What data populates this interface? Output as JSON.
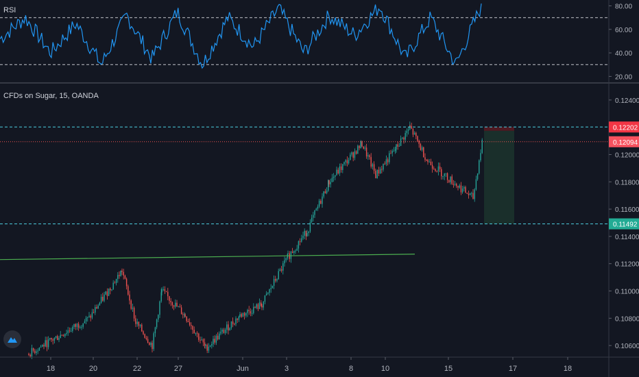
{
  "rsi_pane": {
    "label": "RSI",
    "ticks": [
      "80.00",
      "60.00",
      "40.00",
      "20.00"
    ]
  },
  "price_pane": {
    "label": "CFDs on Sugar, 15, OANDA",
    "ticks": [
      "0.12400",
      "0.12200",
      "0.12000",
      "0.11800",
      "0.11600",
      "0.11400",
      "0.11200",
      "0.11000",
      "0.10800",
      "0.10600"
    ],
    "price_labels": [
      {
        "text": "0.12202",
        "color": "#f23645"
      },
      {
        "text": "0.12094",
        "color": "#f7525f"
      },
      {
        "text": "0.11492",
        "color": "#22ab94"
      }
    ]
  },
  "time_axis": {
    "labels": [
      "18",
      "20",
      "22",
      "27",
      "Jun",
      "3",
      "8",
      "10",
      "15",
      "17",
      "18"
    ]
  },
  "colors": {
    "background": "#131722",
    "up": "#26a69a",
    "down": "#ef5350",
    "rsi_line": "#2196f3",
    "trendline": "#4caf50",
    "target_zone": "#1e3a2f",
    "stop_zone": "#5b1a22"
  },
  "chart_data": {
    "type": "line",
    "title": "CFDs on Sugar, 15, OANDA",
    "price_path": [
      {
        "x": "May 18",
        "y": 0.1054
      },
      {
        "x": "May 20",
        "y": 0.108
      },
      {
        "x": "May 21",
        "y": 0.1115
      },
      {
        "x": "May 22",
        "y": 0.1077
      },
      {
        "x": "May 26",
        "y": 0.106
      },
      {
        "x": "May 27",
        "y": 0.11
      },
      {
        "x": "May 28",
        "y": 0.1082
      },
      {
        "x": "May 29",
        "y": 0.1058
      },
      {
        "x": "Jun 1",
        "y": 0.1082
      },
      {
        "x": "Jun 2",
        "y": 0.109
      },
      {
        "x": "Jun 3",
        "y": 0.1125
      },
      {
        "x": "Jun 4",
        "y": 0.1144
      },
      {
        "x": "Jun 5",
        "y": 0.118
      },
      {
        "x": "Jun 8",
        "y": 0.1208
      },
      {
        "x": "Jun 9",
        "y": 0.1185
      },
      {
        "x": "Jun 10",
        "y": 0.1205
      },
      {
        "x": "Jun 11",
        "y": 0.122
      },
      {
        "x": "Jun 12",
        "y": 0.1195
      },
      {
        "x": "Jun 15",
        "y": 0.1168
      },
      {
        "x": "Jun 16",
        "y": 0.1212
      }
    ],
    "rsi_path": [
      52,
      70,
      40,
      65,
      30,
      72,
      35,
      75,
      30,
      70,
      45,
      78,
      40,
      72,
      55,
      80,
      35,
      70,
      30,
      80
    ],
    "levels": [
      0.12202,
      0.12094,
      0.11492
    ],
    "trendline": [
      {
        "x": "May 16",
        "y": 0.1123
      },
      {
        "x": "Jun 15",
        "y": 0.1127
      }
    ],
    "rsi_bands": [
      70,
      30
    ],
    "ylim": [
      0.1052,
      0.1252
    ],
    "rsi_ylim": [
      15,
      85
    ]
  }
}
